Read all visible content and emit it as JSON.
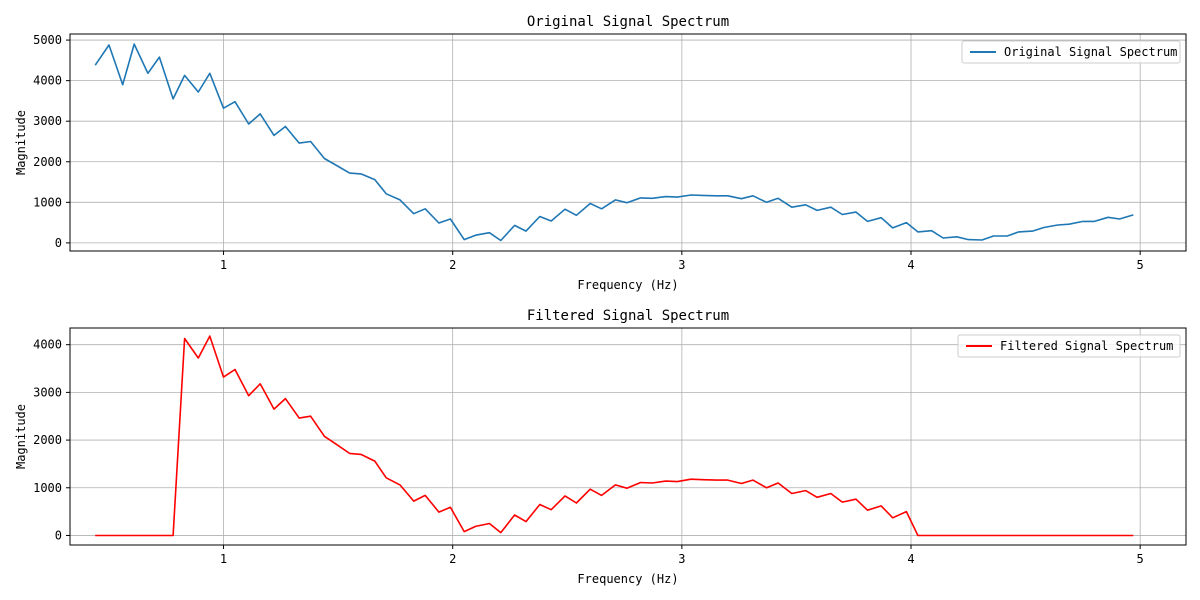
{
  "chart_data": [
    {
      "type": "line",
      "title": "Original Signal Spectrum",
      "xlabel": "Frequency (Hz)",
      "ylabel": "Magnitude",
      "xlim": [
        0.33,
        5.2
      ],
      "ylim": [
        -200,
        5150
      ],
      "xticks": [
        1,
        2,
        3,
        4,
        5
      ],
      "yticks": [
        0,
        1000,
        2000,
        3000,
        4000,
        5000
      ],
      "grid": true,
      "legend": "upper right",
      "series": [
        {
          "name": "Original Signal Spectrum",
          "color": "#1f77b4",
          "x": [
            0.44,
            0.5,
            0.56,
            0.61,
            0.67,
            0.72,
            0.78,
            0.83,
            0.89,
            0.94,
            1.0,
            1.05,
            1.11,
            1.16,
            1.22,
            1.27,
            1.33,
            1.38,
            1.44,
            1.49,
            1.55,
            1.6,
            1.66,
            1.71,
            1.77,
            1.83,
            1.88,
            1.94,
            1.99,
            2.05,
            2.1,
            2.16,
            2.21,
            2.27,
            2.32,
            2.38,
            2.43,
            2.49,
            2.54,
            2.6,
            2.65,
            2.71,
            2.76,
            2.82,
            2.87,
            2.93,
            2.98,
            3.04,
            3.09,
            3.15,
            3.2,
            3.26,
            3.31,
            3.37,
            3.42,
            3.48,
            3.54,
            3.59,
            3.65,
            3.7,
            3.76,
            3.81,
            3.87,
            3.92,
            3.98,
            4.03,
            4.09,
            4.14,
            4.2,
            4.25,
            4.31,
            4.36,
            4.42,
            4.47,
            4.53,
            4.58,
            4.64,
            4.69,
            4.75,
            4.8,
            4.86,
            4.91,
            4.97
          ],
          "y": [
            4380,
            4880,
            3900,
            4900,
            4180,
            4580,
            3550,
            4130,
            3720,
            4180,
            3320,
            3480,
            2930,
            3180,
            2650,
            2870,
            2460,
            2500,
            2080,
            1920,
            1720,
            1700,
            1560,
            1210,
            1060,
            720,
            840,
            490,
            590,
            80,
            190,
            250,
            60,
            430,
            290,
            650,
            540,
            830,
            680,
            970,
            840,
            1060,
            990,
            1110,
            1100,
            1140,
            1130,
            1180,
            1170,
            1160,
            1160,
            1090,
            1160,
            1000,
            1100,
            880,
            940,
            800,
            880,
            700,
            760,
            530,
            620,
            370,
            500,
            270,
            300,
            120,
            150,
            80,
            70,
            170,
            170,
            270,
            290,
            380,
            440,
            460,
            530,
            530,
            630,
            590,
            690
          ]
        }
      ]
    },
    {
      "type": "line",
      "title": "Filtered Signal Spectrum",
      "xlabel": "Frequency (Hz)",
      "ylabel": "Magnitude",
      "xlim": [
        0.33,
        5.2
      ],
      "ylim": [
        -200,
        4350
      ],
      "xticks": [
        1,
        2,
        3,
        4,
        5
      ],
      "yticks": [
        0,
        1000,
        2000,
        3000,
        4000
      ],
      "grid": true,
      "legend": "upper right",
      "series": [
        {
          "name": "Filtered Signal Spectrum",
          "color": "#ff0000",
          "x": [
            0.44,
            0.5,
            0.56,
            0.61,
            0.67,
            0.72,
            0.78,
            0.83,
            0.89,
            0.94,
            1.0,
            1.05,
            1.11,
            1.16,
            1.22,
            1.27,
            1.33,
            1.38,
            1.44,
            1.49,
            1.55,
            1.6,
            1.66,
            1.71,
            1.77,
            1.83,
            1.88,
            1.94,
            1.99,
            2.05,
            2.1,
            2.16,
            2.21,
            2.27,
            2.32,
            2.38,
            2.43,
            2.49,
            2.54,
            2.6,
            2.65,
            2.71,
            2.76,
            2.82,
            2.87,
            2.93,
            2.98,
            3.04,
            3.09,
            3.15,
            3.2,
            3.26,
            3.31,
            3.37,
            3.42,
            3.48,
            3.54,
            3.59,
            3.65,
            3.7,
            3.76,
            3.81,
            3.87,
            3.92,
            3.98,
            4.03,
            4.09,
            4.14,
            4.2,
            4.25,
            4.31,
            4.36,
            4.42,
            4.47,
            4.53,
            4.58,
            4.64,
            4.69,
            4.75,
            4.8,
            4.86,
            4.91,
            4.97
          ],
          "y": [
            0,
            0,
            0,
            0,
            0,
            0,
            0,
            4130,
            3720,
            4180,
            3320,
            3480,
            2930,
            3180,
            2650,
            2870,
            2460,
            2500,
            2080,
            1920,
            1720,
            1700,
            1560,
            1210,
            1060,
            720,
            840,
            490,
            590,
            80,
            190,
            250,
            60,
            430,
            290,
            650,
            540,
            830,
            680,
            970,
            840,
            1060,
            990,
            1110,
            1100,
            1140,
            1130,
            1180,
            1170,
            1160,
            1160,
            1090,
            1160,
            1000,
            1100,
            880,
            940,
            800,
            880,
            700,
            760,
            530,
            620,
            370,
            500,
            0,
            0,
            0,
            0,
            0,
            0,
            0,
            0,
            0,
            0,
            0,
            0,
            0,
            0,
            0,
            0,
            0,
            0
          ]
        }
      ]
    }
  ]
}
